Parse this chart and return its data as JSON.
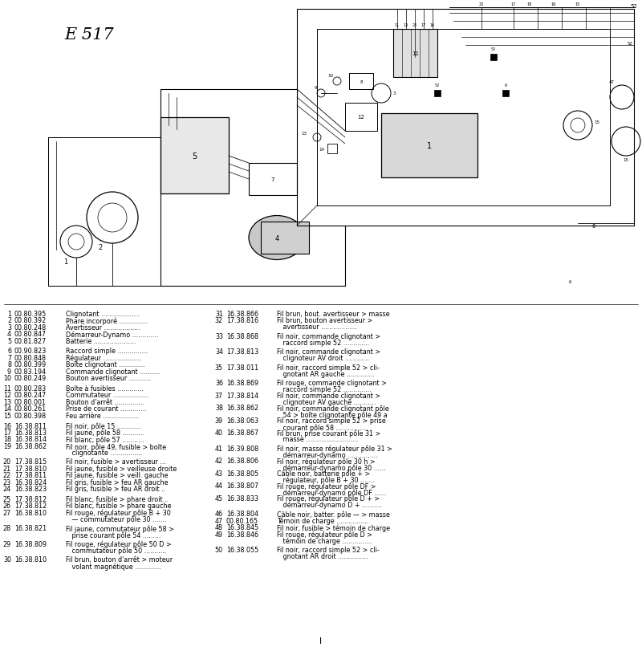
{
  "title": "E 517",
  "bg_color": "#ffffff",
  "left_columns": [
    {
      "num": "1",
      "ref": "00.80.395",
      "desc": "Clignotant ...................",
      "extra": 0
    },
    {
      "num": "2",
      "ref": "00.80.392",
      "desc": "Phare incorporé ..............",
      "extra": 0
    },
    {
      "num": "3",
      "ref": "00.80.248",
      "desc": "Avertisseur ..................",
      "extra": 0
    },
    {
      "num": "4",
      "ref": "00.80.847",
      "desc": "Démarreur-Dynamo .............",
      "extra": 0
    },
    {
      "num": "5",
      "ref": "00.81.827",
      "desc": "Batterie .....................",
      "extra": 0
    },
    {
      "num": "",
      "ref": "",
      "desc": "",
      "extra": 0
    },
    {
      "num": "6",
      "ref": "00.90.823",
      "desc": "Raccord simple ...............",
      "extra": 0
    },
    {
      "num": "7",
      "ref": "00.80.848",
      "desc": "Régulateur ...................",
      "extra": 0
    },
    {
      "num": "8",
      "ref": "00.80.399",
      "desc": "Boîte clignotant .............",
      "extra": 0
    },
    {
      "num": "9",
      "ref": "00.83.194",
      "desc": "Commande clignotant ..........",
      "extra": 0
    },
    {
      "num": "10",
      "ref": "00.80.249",
      "desc": "Bouton avertisseur ...........",
      "extra": 0
    },
    {
      "num": "",
      "ref": "",
      "desc": "",
      "extra": 0
    },
    {
      "num": "11",
      "ref": "00.80.283",
      "desc": "Boîte à fusibles .............",
      "extra": 0
    },
    {
      "num": "12",
      "ref": "00.80.247",
      "desc": "Commutateur ..................",
      "extra": 0
    },
    {
      "num": "13",
      "ref": "00.80.001",
      "desc": "Bouton d'arrêt ...............",
      "extra": 0
    },
    {
      "num": "14",
      "ref": "00.80.261",
      "desc": "Prise de courant .............",
      "extra": 0
    },
    {
      "num": "15",
      "ref": "00.80.398",
      "desc": "Feu arrière ..................",
      "extra": 0
    },
    {
      "num": "",
      "ref": "",
      "desc": "",
      "extra": 0
    },
    {
      "num": "16",
      "ref": "16.38.811",
      "desc": "Fil noir, pôle 15 ............",
      "extra": 0
    },
    {
      "num": "17",
      "ref": "16.38.813",
      "desc": "Fil jaune, pôle 58 ...........",
      "extra": 0
    },
    {
      "num": "18",
      "ref": "16.38.814",
      "desc": "Fil blanc, pôle 57 ...........",
      "extra": 0
    },
    {
      "num": "19",
      "ref": "16.38.862",
      "desc": "Fil noir, pôle 49, fusible > boîte",
      "extra": 1,
      "desc2": "   clignotante ................"
    },
    {
      "num": "",
      "ref": "",
      "desc": "",
      "extra": 0
    },
    {
      "num": "20",
      "ref": "17.38.815",
      "desc": "Fil noir, fusible > avertisseur ...",
      "extra": 0
    },
    {
      "num": "21",
      "ref": "17.38.810",
      "desc": "Fil jaune, fusible > veilleuse droite",
      "extra": 0
    },
    {
      "num": "22",
      "ref": "17.38.811",
      "desc": "Fil jaune, fusible > veill. gauche",
      "extra": 0
    },
    {
      "num": "23",
      "ref": "16.38.824",
      "desc": "Fil gris, fusible > feu AR gauche",
      "extra": 0
    },
    {
      "num": "24",
      "ref": "16.38.823",
      "desc": "Fil gris, fusible > feu AR droit ..",
      "extra": 0
    },
    {
      "num": "",
      "ref": "",
      "desc": "",
      "extra": 0
    },
    {
      "num": "25",
      "ref": "17.38.812",
      "desc": "Fil blanc, fusible > phare droit ..",
      "extra": 0
    },
    {
      "num": "26",
      "ref": "17.38.812",
      "desc": "Fil blanc, fusible > phare gauche",
      "extra": 0
    },
    {
      "num": "27",
      "ref": "16.38.810",
      "desc": "Fil rouge, régulateur pôle B + 30",
      "extra": 1,
      "desc2": "   — commutateur pôle 30 ......."
    },
    {
      "num": "",
      "ref": "",
      "desc": "",
      "extra": 0
    },
    {
      "num": "28",
      "ref": "16.38.821",
      "desc": "Fil jaune, commutateur pôle 58 >",
      "extra": 1,
      "desc2": "   prise courant pôle 54 ........."
    },
    {
      "num": "",
      "ref": "",
      "desc": "",
      "extra": 0
    },
    {
      "num": "29",
      "ref": "16.38.809",
      "desc": "Fil rouge, régulateur pôle 50 D >",
      "extra": 1,
      "desc2": "   commutateur pôle 50 ..........."
    },
    {
      "num": "",
      "ref": "",
      "desc": "",
      "extra": 0
    },
    {
      "num": "30",
      "ref": "16.38.810",
      "desc": "Fil brun, bouton d'arrêt > moteur",
      "extra": 1,
      "desc2": "   volant magnétique ............."
    }
  ],
  "right_columns": [
    {
      "num": "31",
      "ref": "16.38.866",
      "desc": "Fil brun, bout. avertisseur > masse",
      "extra": 0
    },
    {
      "num": "32",
      "ref": "17.38.816",
      "desc": "Fil brun, bouton avertisseur >",
      "extra": 1,
      "desc2": "   avertisseur .................."
    },
    {
      "num": "",
      "ref": "",
      "desc": "",
      "extra": 0
    },
    {
      "num": "33",
      "ref": "16.38.868",
      "desc": "Fil noir, commande clignotant >",
      "extra": 1,
      "desc2": "   raccord simple 52 ............."
    },
    {
      "num": "",
      "ref": "",
      "desc": "",
      "extra": 0
    },
    {
      "num": "34",
      "ref": "17.38.813",
      "desc": "Fil noir, commande clignotant >",
      "extra": 1,
      "desc2": "   clignoteur AV droit ............"
    },
    {
      "num": "",
      "ref": "",
      "desc": "",
      "extra": 0
    },
    {
      "num": "35",
      "ref": "17.38.011",
      "desc": "Fil noir, raccord simple 52 > cli-",
      "extra": 1,
      "desc2": "   gnotant AR gauche .............."
    },
    {
      "num": "",
      "ref": "",
      "desc": "",
      "extra": 0
    },
    {
      "num": "36",
      "ref": "16.38.869",
      "desc": "Fil rouge, commande clignotant >",
      "extra": 1,
      "desc2": "   raccord simple 52 .............."
    },
    {
      "num": "37",
      "ref": "17.38.814",
      "desc": "Fil noir, commande clignotant >",
      "extra": 1,
      "desc2": "   clignoteur AV gauche ..........."
    },
    {
      "num": "38",
      "ref": "16.38.862",
      "desc": "Fil noir, commande clignotant pôle",
      "extra": 1,
      "desc2": "   54 > boîte clignotante pôle 49 a"
    },
    {
      "num": "39",
      "ref": "16.38.063",
      "desc": "Fil noir, raccord simple 52 > prise",
      "extra": 1,
      "desc2": "   courant pôle 58 ................"
    },
    {
      "num": "40",
      "ref": "16.38.867",
      "desc": "Fil brun, prise courant pôle 31 >",
      "extra": 1,
      "desc2": "   masse .........................."
    },
    {
      "num": "",
      "ref": "",
      "desc": "",
      "extra": 0
    },
    {
      "num": "41",
      "ref": "16.39.808",
      "desc": "Fil noir, masse régulateur pôle 31 >",
      "extra": 1,
      "desc2": "   démarreur-dynamo ..............."
    },
    {
      "num": "42",
      "ref": "16.38.806",
      "desc": "Fil noir, régulateur pôle 30 h >",
      "extra": 1,
      "desc2": "   démarreur-dynamo pôle 30 ......"
    },
    {
      "num": "43",
      "ref": "16.38.805",
      "desc": "Câble noir, batterie pôle + >",
      "extra": 1,
      "desc2": "   régulateur, pôle B + 30 ......."
    },
    {
      "num": "44",
      "ref": "16.38.807",
      "desc": "Fil rouge, régulateur pôle DF >",
      "extra": 1,
      "desc2": "   démarreur-dynamo pôle DF ......"
    },
    {
      "num": "45",
      "ref": "16.38.833",
      "desc": "Fil rouge, régulateur pôle D + >",
      "extra": 1,
      "desc2": "   démarreur-dynamo D + .........."
    },
    {
      "num": "",
      "ref": "",
      "desc": "",
      "extra": 0
    },
    {
      "num": "46",
      "ref": "16.38.804",
      "desc": "Câble noir, batter. pôle — > masse",
      "extra": 0
    },
    {
      "num": "47",
      "ref": "00.80.165",
      "desc": "Témoin de charge ................",
      "extra": 0
    },
    {
      "num": "48",
      "ref": "16.38.845",
      "desc": "Fil noir, fusible > témoin de charge",
      "extra": 0
    },
    {
      "num": "49",
      "ref": "16.38.846",
      "desc": "Fil rouge, régulateur pôle D >",
      "extra": 1,
      "desc2": "   témoin de charge ..............."
    },
    {
      "num": "",
      "ref": "",
      "desc": "",
      "extra": 0
    },
    {
      "num": "50",
      "ref": "16.38.055",
      "desc": "Fil noir, raccord simple 52 > cli-",
      "extra": 1,
      "desc2": "   gnotant AR droit ..............."
    }
  ]
}
